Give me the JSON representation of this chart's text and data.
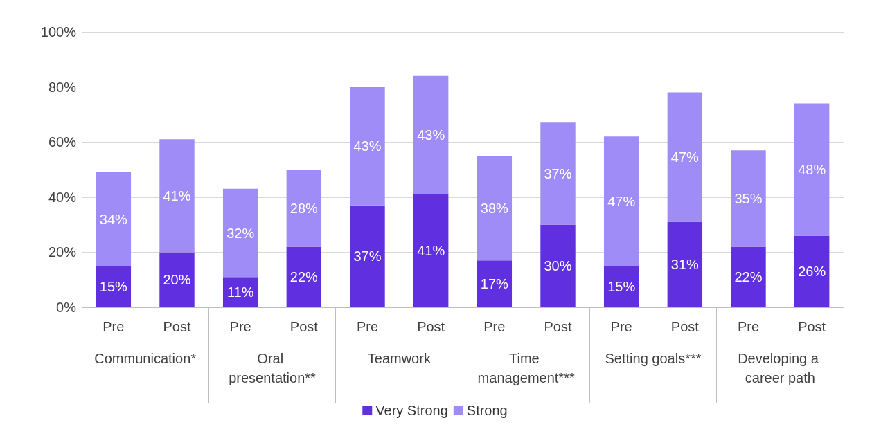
{
  "chart_data": {
    "type": "bar",
    "stacked": true,
    "categories": [
      "Pre",
      "Post",
      "Pre",
      "Post",
      "Pre",
      "Post",
      "Pre",
      "Post",
      "Pre",
      "Post",
      "Pre",
      "Post"
    ],
    "annotations": [
      "Communication*",
      "Oral presentation**",
      "Teamwork",
      "Time management***",
      "Setting goals***",
      "Developing a career path"
    ],
    "series": [
      {
        "name": "Very Strong",
        "color": "#5f2fe0",
        "values": [
          15,
          20,
          11,
          22,
          37,
          41,
          17,
          30,
          15,
          31,
          22,
          26
        ],
        "value_labels": [
          "15%",
          "20%",
          "11%",
          "22%",
          "37%",
          "41%",
          "17%",
          "30%",
          "15%",
          "31%",
          "22%",
          "26%"
        ]
      },
      {
        "name": "Strong",
        "color": "#a08cf6",
        "values": [
          34,
          41,
          32,
          28,
          43,
          43,
          38,
          37,
          47,
          47,
          35,
          48
        ],
        "value_labels": [
          "34%",
          "41%",
          "32%",
          "28%",
          "43%",
          "43%",
          "38%",
          "37%",
          "47%",
          "47%",
          "35%",
          "48%"
        ]
      }
    ],
    "ylim": [
      0,
      100
    ],
    "yticks": [
      {
        "value": 0,
        "label": "0%"
      },
      {
        "value": 20,
        "label": "20%"
      },
      {
        "value": 40,
        "label": "40%"
      },
      {
        "value": 60,
        "label": "60%"
      },
      {
        "value": 80,
        "label": "80%"
      },
      {
        "value": 100,
        "label": "100%"
      }
    ],
    "grid": "y",
    "legend": "bottom"
  }
}
